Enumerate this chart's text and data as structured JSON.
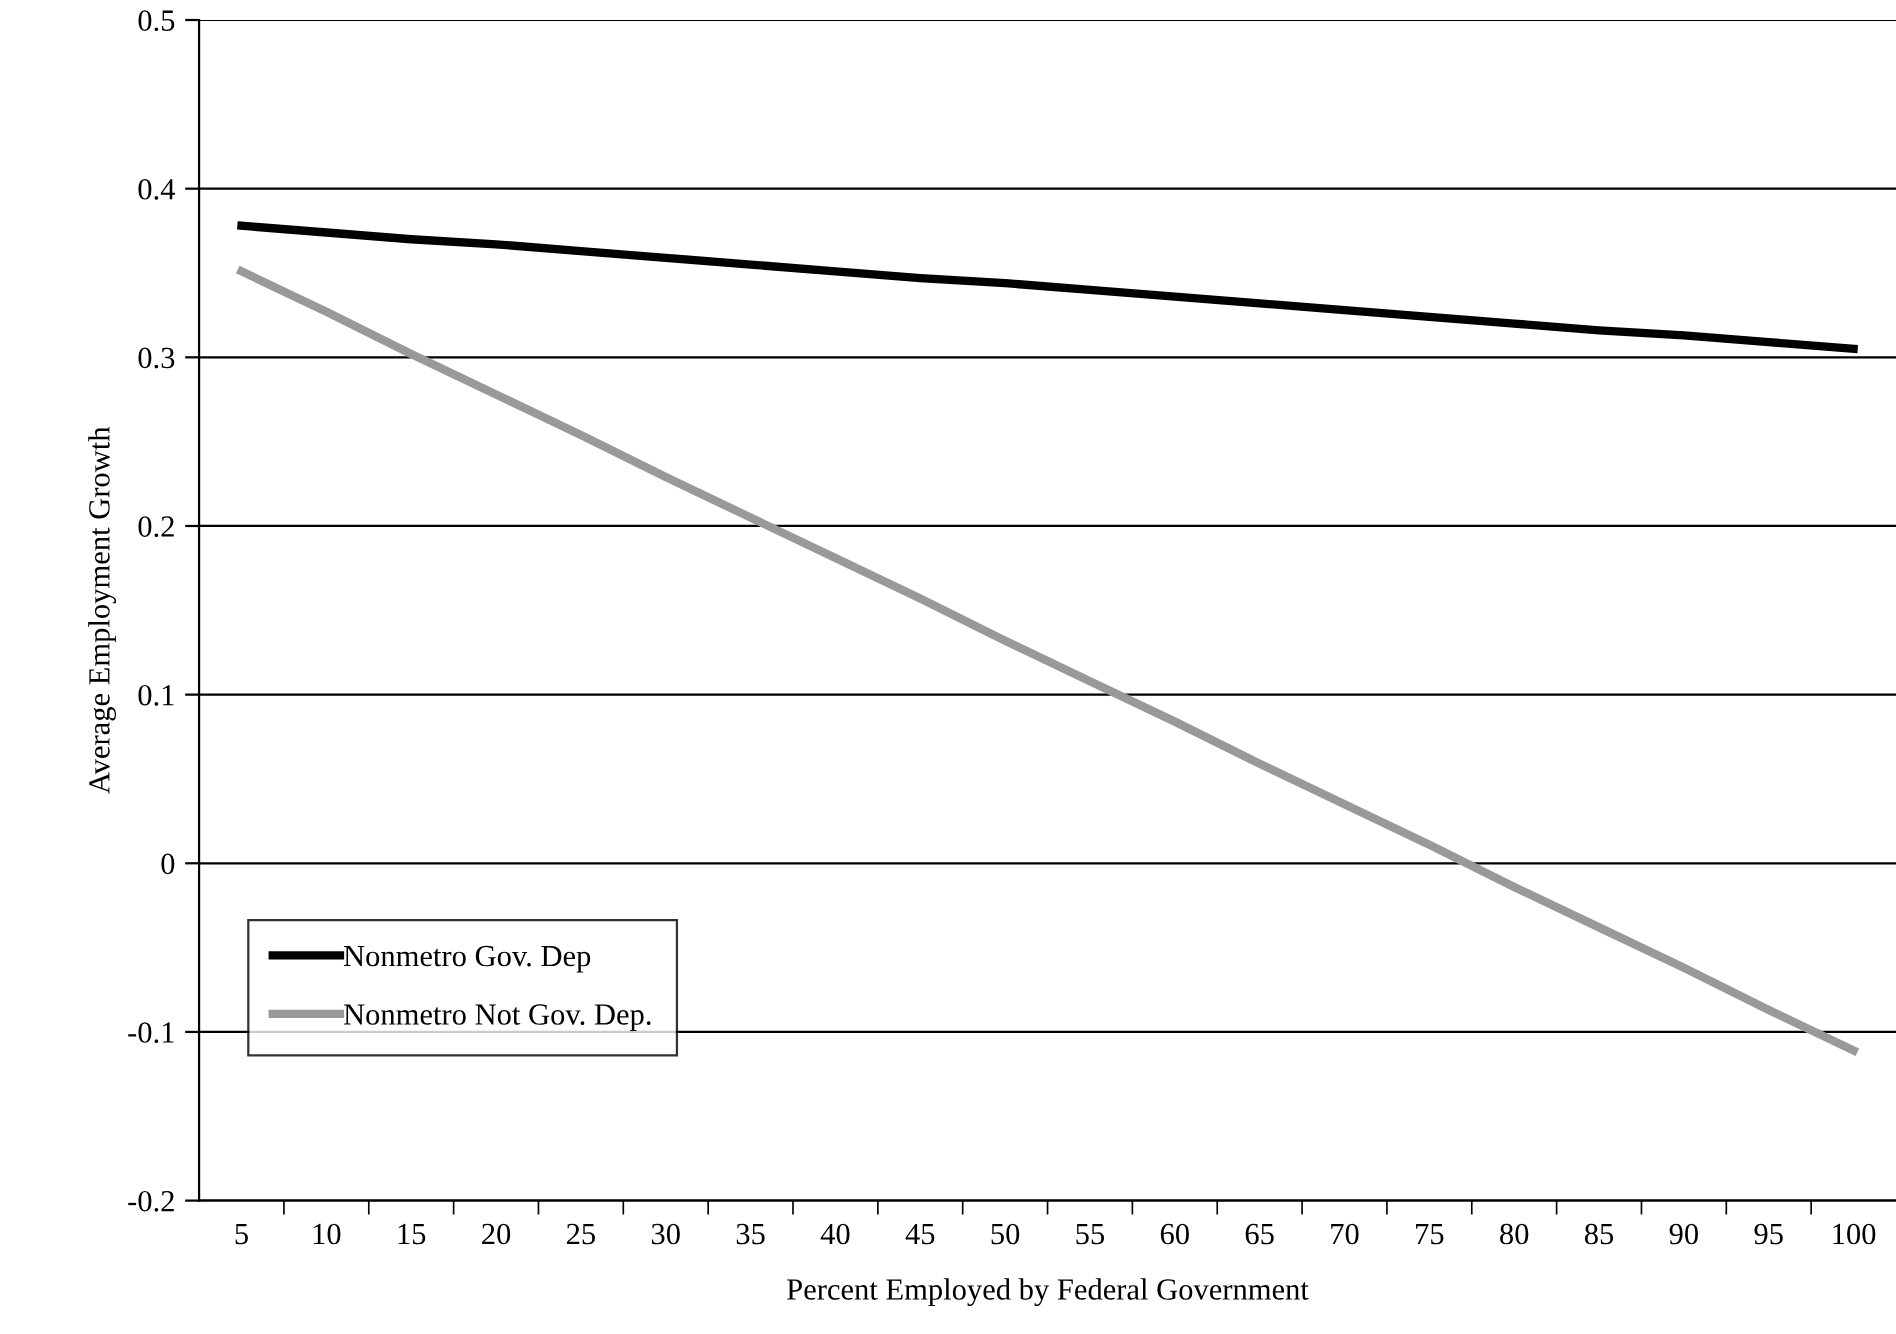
{
  "chart_data": {
    "type": "line",
    "xlabel": "Percent Employed by Federal Government",
    "ylabel": "Average Employment Growth",
    "categories": [
      "5",
      "10",
      "15",
      "20",
      "25",
      "30",
      "35",
      "40",
      "45",
      "50",
      "55",
      "60",
      "65",
      "70",
      "75",
      "80",
      "85",
      "90",
      "95",
      "100"
    ],
    "series": [
      {
        "name": "Nonmetro Gov. Dep",
        "color": "#000000",
        "values": [
          0.378,
          0.374,
          0.37,
          0.367,
          0.363,
          0.359,
          0.355,
          0.351,
          0.347,
          0.344,
          0.34,
          0.336,
          0.332,
          0.328,
          0.324,
          0.32,
          0.316,
          0.313,
          0.309,
          0.305
        ]
      },
      {
        "name": "Nonmetro Not Gov. Dep.",
        "color": "#999999",
        "values": [
          0.351,
          0.327,
          0.302,
          0.278,
          0.254,
          0.229,
          0.205,
          0.181,
          0.157,
          0.132,
          0.108,
          0.084,
          0.059,
          0.035,
          0.011,
          -0.014,
          -0.038,
          -0.062,
          -0.087,
          -0.111
        ]
      }
    ],
    "ylim": [
      -0.2,
      0.5
    ],
    "yticks": [
      -0.2,
      -0.1,
      0,
      0.1,
      0.2,
      0.3,
      0.4,
      0.5
    ],
    "grid": "y",
    "legend": "bottom left",
    "marker": "none",
    "line_style": "solid"
  }
}
